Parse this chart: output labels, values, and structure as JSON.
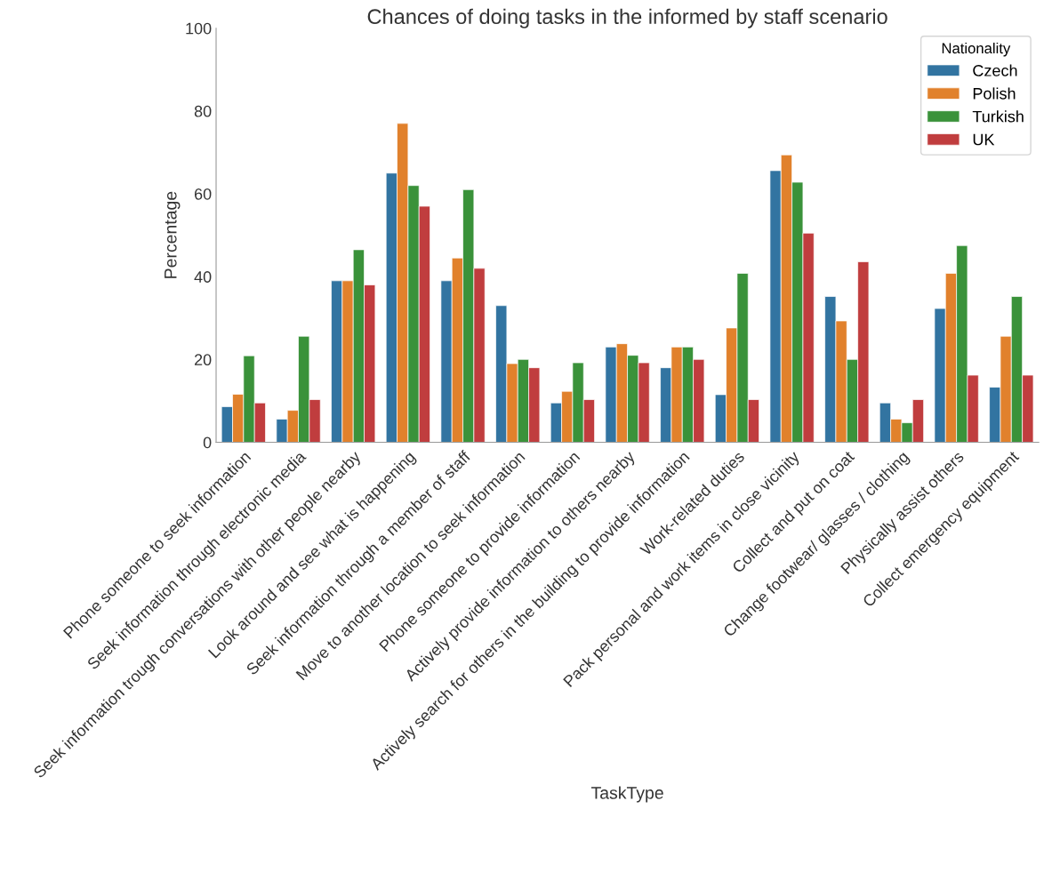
{
  "chart_data": {
    "type": "bar",
    "title": "Chances of doing tasks in the informed by staff scenario",
    "xlabel": "TaskType",
    "ylabel": "Percentage",
    "legend_title": "Nationality",
    "legend": "top right",
    "grid": false,
    "categories": [
      "Phone someone to seek information",
      "Seek information through electronic media",
      "Seek information trough conversations with other people nearby",
      "Look around and see what is happening",
      "Seek information through a member of staff",
      "Move to another location to seek information",
      "Phone someone to provide information",
      "Actively provide information to others nearby",
      "Actively search for others in the building to provide information",
      "Work-related duties",
      "Pack personal and work items in close vicinity",
      "Collect and put on coat",
      "Change footwear/ glasses / clothing",
      "Physically assist others",
      "Collect emergency equipment"
    ],
    "ylim": [
      0,
      100
    ],
    "yticks": [
      0,
      20,
      40,
      60,
      80,
      100
    ],
    "series": [
      {
        "name": "Czech",
        "color": "#3274a1",
        "values": [
          8.6,
          5.6,
          39,
          65,
          39,
          33,
          9.5,
          23,
          18,
          11.5,
          65.6,
          35.2,
          9.5,
          32.3,
          13.3
        ]
      },
      {
        "name": "Polish",
        "color": "#e1812c",
        "values": [
          11.6,
          7.7,
          39,
          77,
          44.5,
          19,
          12.3,
          23.8,
          23,
          27.6,
          69.4,
          29.3,
          5.6,
          40.8,
          25.6
        ]
      },
      {
        "name": "Turkish",
        "color": "#3a923a",
        "values": [
          20.9,
          25.6,
          46.5,
          62,
          61,
          20,
          19.2,
          21,
          23,
          40.8,
          62.8,
          20,
          4.7,
          47.5,
          35.2
        ]
      },
      {
        "name": "UK",
        "color": "#c03d3e",
        "values": [
          9.5,
          10.3,
          38,
          57,
          42,
          18,
          10.3,
          19.2,
          20,
          10.3,
          50.5,
          43.6,
          10.3,
          16.2,
          16.2
        ]
      }
    ]
  }
}
